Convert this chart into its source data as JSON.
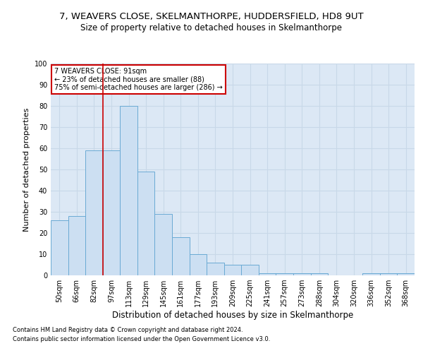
{
  "title": "7, WEAVERS CLOSE, SKELMANTHORPE, HUDDERSFIELD, HD8 9UT",
  "subtitle": "Size of property relative to detached houses in Skelmanthorpe",
  "xlabel": "Distribution of detached houses by size in Skelmanthorpe",
  "ylabel": "Number of detached properties",
  "bar_labels": [
    "50sqm",
    "66sqm",
    "82sqm",
    "97sqm",
    "113sqm",
    "129sqm",
    "145sqm",
    "161sqm",
    "177sqm",
    "193sqm",
    "209sqm",
    "225sqm",
    "241sqm",
    "257sqm",
    "273sqm",
    "288sqm",
    "304sqm",
    "320sqm",
    "336sqm",
    "352sqm",
    "368sqm"
  ],
  "bar_values": [
    26,
    28,
    59,
    59,
    80,
    49,
    29,
    18,
    10,
    6,
    5,
    5,
    1,
    1,
    1,
    1,
    0,
    0,
    1,
    1,
    1
  ],
  "bar_color": "#ccdff2",
  "bar_edge_color": "#6aaad4",
  "grid_color": "#c8d8e8",
  "background_color": "#dce8f5",
  "vline_color": "#cc0000",
  "vline_position": 2.5,
  "annotation_text": "7 WEAVERS CLOSE: 91sqm\n← 23% of detached houses are smaller (88)\n75% of semi-detached houses are larger (286) →",
  "annotation_box_facecolor": "#ffffff",
  "annotation_box_edgecolor": "#cc0000",
  "ylim": [
    0,
    100
  ],
  "yticks": [
    0,
    10,
    20,
    30,
    40,
    50,
    60,
    70,
    80,
    90,
    100
  ],
  "footer1": "Contains HM Land Registry data © Crown copyright and database right 2024.",
  "footer2": "Contains public sector information licensed under the Open Government Licence v3.0.",
  "title_fontsize": 9.5,
  "subtitle_fontsize": 8.5,
  "xlabel_fontsize": 8.5,
  "ylabel_fontsize": 8,
  "tick_fontsize": 7,
  "annotation_fontsize": 7,
  "footer_fontsize": 6
}
